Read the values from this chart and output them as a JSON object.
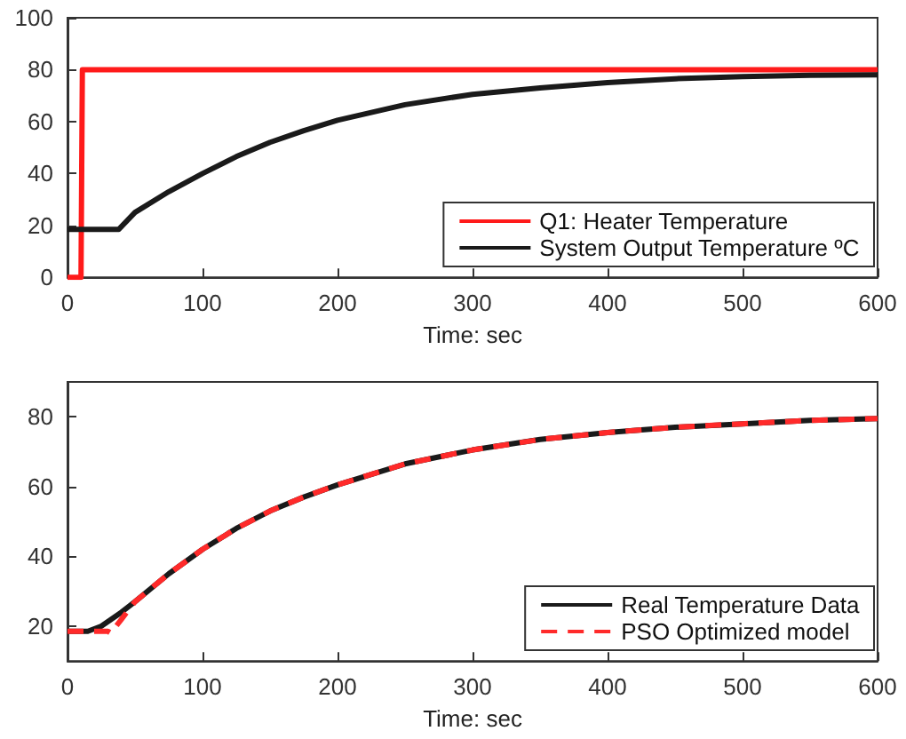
{
  "chart_data": [
    {
      "type": "line",
      "xlabel": "Time: sec",
      "xlim": [
        0,
        600
      ],
      "xticks": [
        0,
        100,
        200,
        300,
        400,
        500,
        600
      ],
      "ylim": [
        0,
        100
      ],
      "yticks": [
        0,
        20,
        40,
        60,
        80,
        100
      ],
      "grid": false,
      "legend": "bottom right",
      "line_style": "solid",
      "marker": "none",
      "series": [
        {
          "name": "Q1: Heater Temperature",
          "color": "#ff1a1a",
          "x": [
            0,
            10,
            11,
            600
          ],
          "values": [
            0,
            0,
            80,
            80
          ]
        },
        {
          "name": "System Output Temperature ºC",
          "color": "#1a1a1a",
          "x": [
            0,
            38,
            50,
            75,
            100,
            125,
            150,
            175,
            200,
            250,
            300,
            350,
            400,
            450,
            500,
            550,
            600
          ],
          "values": [
            18.5,
            18.5,
            25,
            33,
            40,
            46.5,
            52,
            56.5,
            60.5,
            66.5,
            70.5,
            73,
            75,
            76.5,
            77.3,
            77.8,
            78
          ]
        }
      ]
    },
    {
      "type": "line",
      "xlabel": "Time: sec",
      "xlim": [
        0,
        600
      ],
      "xticks": [
        0,
        100,
        200,
        300,
        400,
        500,
        600
      ],
      "ylim": [
        10,
        90
      ],
      "yticks": [
        20,
        40,
        60,
        80
      ],
      "grid": false,
      "legend": "bottom right",
      "marker": "none",
      "series": [
        {
          "name": "Real Temperature Data",
          "color": "#1a1a1a",
          "line_style": "solid",
          "x": [
            0,
            15,
            25,
            40,
            50,
            75,
            100,
            125,
            150,
            175,
            200,
            250,
            300,
            350,
            400,
            450,
            500,
            550,
            600
          ],
          "values": [
            18.5,
            18.5,
            20,
            24,
            27,
            35,
            42,
            48,
            53,
            57,
            60.5,
            66.5,
            70.5,
            73.5,
            75.5,
            77,
            78,
            79,
            79.5
          ]
        },
        {
          "name": "PSO Optimized model",
          "color": "#ff2a2a",
          "line_style": "dashed",
          "x": [
            0,
            30,
            32,
            40,
            50,
            75,
            100,
            125,
            150,
            175,
            200,
            250,
            300,
            350,
            400,
            450,
            500,
            550,
            600
          ],
          "values": [
            18.5,
            18.5,
            18,
            22,
            27,
            35,
            42,
            48,
            53,
            57,
            60.5,
            66.5,
            70.5,
            73.5,
            75.5,
            77,
            78,
            79,
            79.5
          ]
        }
      ]
    }
  ]
}
